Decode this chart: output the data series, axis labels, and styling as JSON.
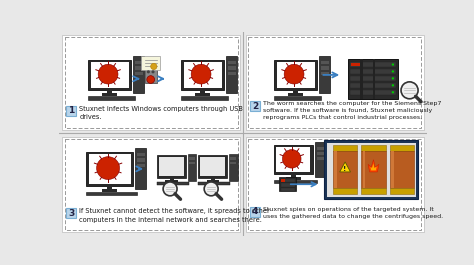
{
  "bg_color": "#e8e8e8",
  "panel_bg": "#ffffff",
  "dashed_color": "#999999",
  "arrow_color": "#3a7fc1",
  "red_color": "#cc2200",
  "dark": "#222222",
  "number_box_fill": "#b8d4ea",
  "number_box_edge": "#7aafd4",
  "panel1_text": "Stuxnet infects Windows computers through USB\ndrives.",
  "panel2_text": "The worm searches the computer for the Siemens Step7\nsoftware. If the software is found, Stuxnet maliciously\nreprograms PLCs that control industrial processes.",
  "panel3_text": "If Stuxnet cannot detect the software, it spreads to other\ncomputers in the internal network and searches there.",
  "panel4_text": "Stuxnet spies on operations of the targeted system. It\nuses the gathered data to change the centrifuges speed."
}
